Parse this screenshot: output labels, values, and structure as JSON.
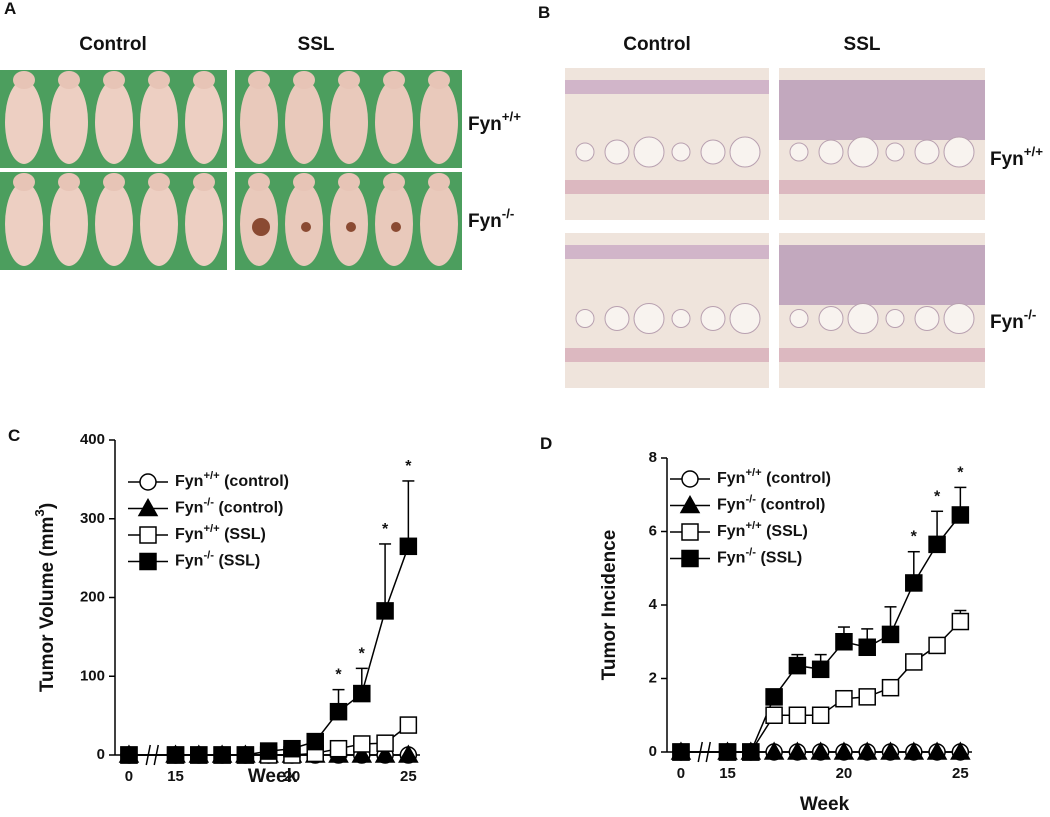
{
  "panel_a": {
    "label": "A",
    "columns": [
      "Control",
      "SSL"
    ],
    "rows": [
      "Fyn+/+",
      "Fyn-/-"
    ]
  },
  "panel_b": {
    "label": "B",
    "columns": [
      "Control",
      "SSL"
    ],
    "rows": [
      "Fyn+/+",
      "Fyn-/-"
    ]
  },
  "chart_data": [
    {
      "type": "line",
      "label": "C",
      "xlabel": "Week",
      "ylabel": "Tumor Volume (mm3)",
      "x": [
        0,
        15,
        16,
        17,
        18,
        19,
        20,
        21,
        22,
        23,
        24,
        25
      ],
      "axis_break": [
        0,
        15
      ],
      "xlim": [
        -0.6,
        25.5
      ],
      "xticks": [
        0,
        15,
        20,
        25
      ],
      "ylim": [
        0,
        400
      ],
      "yticks": [
        0,
        100,
        200,
        300,
        400
      ],
      "series": [
        {
          "name": "Fyn+/+ (control)",
          "color": "#000000",
          "marker": "circle-open",
          "values": [
            0,
            0,
            0,
            0,
            0,
            0,
            0,
            0,
            0,
            0,
            0,
            0
          ]
        },
        {
          "name": "Fyn-/- (control)",
          "color": "#000000",
          "marker": "triangle",
          "values": [
            0,
            0,
            0,
            0,
            0,
            0,
            0,
            0,
            0,
            0,
            0,
            0
          ]
        },
        {
          "name": "Fyn+/+ (SSL)",
          "color": "#000000",
          "marker": "square-open",
          "values": [
            0,
            0,
            0,
            0,
            0,
            0,
            0,
            2,
            8,
            14,
            15,
            38
          ]
        },
        {
          "name": "Fyn-/- (SSL)",
          "color": "#000000",
          "marker": "square",
          "values": [
            0,
            0,
            0,
            0,
            0,
            5,
            8,
            17,
            55,
            78,
            183,
            265
          ],
          "errors": [
            null,
            null,
            null,
            null,
            null,
            null,
            null,
            null,
            28,
            32,
            85,
            83
          ]
        }
      ],
      "annotations": [
        {
          "x": 22,
          "text": "*"
        },
        {
          "x": 23,
          "text": "*"
        },
        {
          "x": 24,
          "text": "*"
        },
        {
          "x": 25,
          "text": "*"
        }
      ]
    },
    {
      "type": "line",
      "label": "D",
      "xlabel": "Week",
      "ylabel": "Tumor Incidence",
      "x": [
        0,
        15,
        16,
        17,
        18,
        19,
        20,
        21,
        22,
        23,
        24,
        25
      ],
      "axis_break": [
        0,
        15
      ],
      "xlim": [
        -0.6,
        25.5
      ],
      "xticks": [
        0,
        15,
        20,
        25
      ],
      "ylim": [
        0,
        8
      ],
      "yticks": [
        0,
        2,
        4,
        6,
        8
      ],
      "series": [
        {
          "name": "Fyn+/+ (control)",
          "color": "#000000",
          "marker": "circle-open",
          "values": [
            0,
            0,
            0,
            0,
            0,
            0,
            0,
            0,
            0,
            0,
            0,
            0
          ]
        },
        {
          "name": "Fyn-/- (control)",
          "color": "#000000",
          "marker": "triangle",
          "values": [
            0,
            0,
            0,
            0,
            0,
            0,
            0,
            0,
            0,
            0,
            0,
            0
          ]
        },
        {
          "name": "Fyn+/+ (SSL)",
          "color": "#000000",
          "marker": "square-open",
          "values": [
            0,
            0,
            0,
            1.0,
            1.0,
            1.0,
            1.45,
            1.5,
            1.75,
            2.45,
            2.9,
            3.55
          ],
          "errors": [
            null,
            null,
            null,
            null,
            null,
            null,
            null,
            null,
            null,
            null,
            0.2,
            0.3
          ]
        },
        {
          "name": "Fyn-/- (SSL)",
          "color": "#000000",
          "marker": "square",
          "values": [
            0,
            0,
            0,
            1.5,
            2.35,
            2.25,
            3.0,
            2.85,
            3.2,
            4.6,
            5.65,
            6.45
          ],
          "errors": [
            null,
            null,
            null,
            null,
            0.3,
            0.4,
            0.4,
            0.5,
            0.75,
            0.85,
            0.9,
            0.75
          ]
        }
      ],
      "annotations": [
        {
          "x": 23,
          "text": "*"
        },
        {
          "x": 24,
          "text": "*"
        },
        {
          "x": 25,
          "text": "*"
        }
      ]
    }
  ]
}
